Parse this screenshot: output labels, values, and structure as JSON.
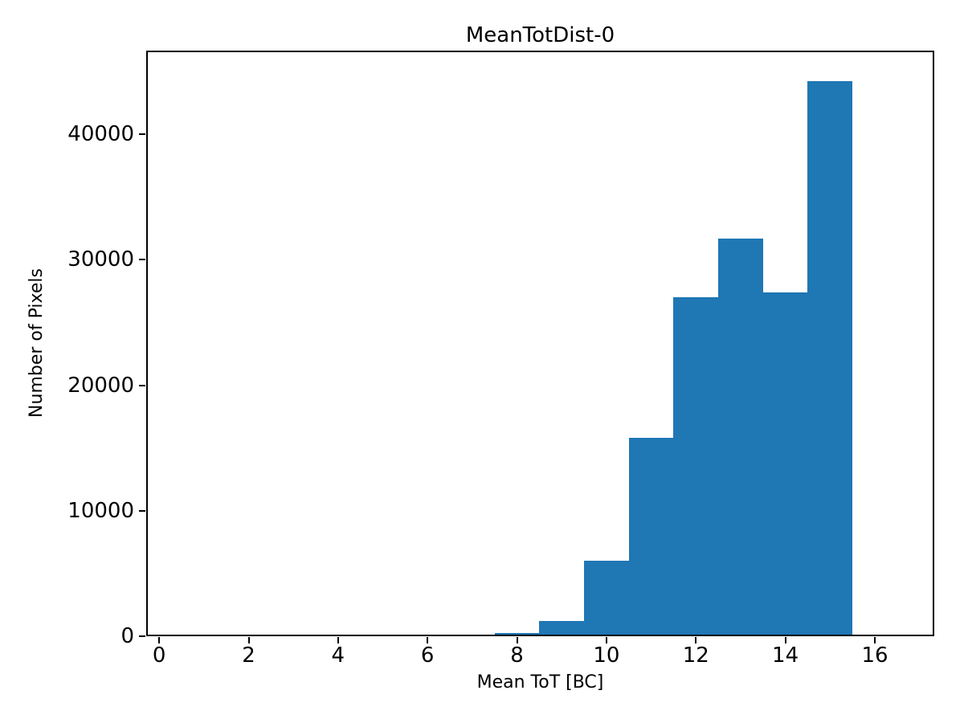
{
  "chart_data": {
    "type": "bar",
    "subtype": "histogram",
    "title": "MeanTotDist-0",
    "xlabel": "Mean ToT [BC]",
    "ylabel": "Number of Pixels",
    "bin_edges": [
      7.5,
      8.5,
      9.5,
      10.5,
      11.5,
      12.5,
      13.5,
      14.5,
      15.5
    ],
    "counts": [
      250,
      1250,
      6000,
      15800,
      27000,
      31700,
      27400,
      44200
    ],
    "xlim": [
      -0.29,
      17.33
    ],
    "ylim": [
      0,
      46650
    ],
    "xticks": [
      0,
      2,
      4,
      6,
      8,
      10,
      12,
      14,
      16
    ],
    "yticks": [
      0,
      10000,
      20000,
      30000,
      40000
    ],
    "bar_color": "#1f77b4",
    "axis_color": "#000000",
    "background_color": "#ffffff",
    "grid": false,
    "legend_position": "none"
  }
}
